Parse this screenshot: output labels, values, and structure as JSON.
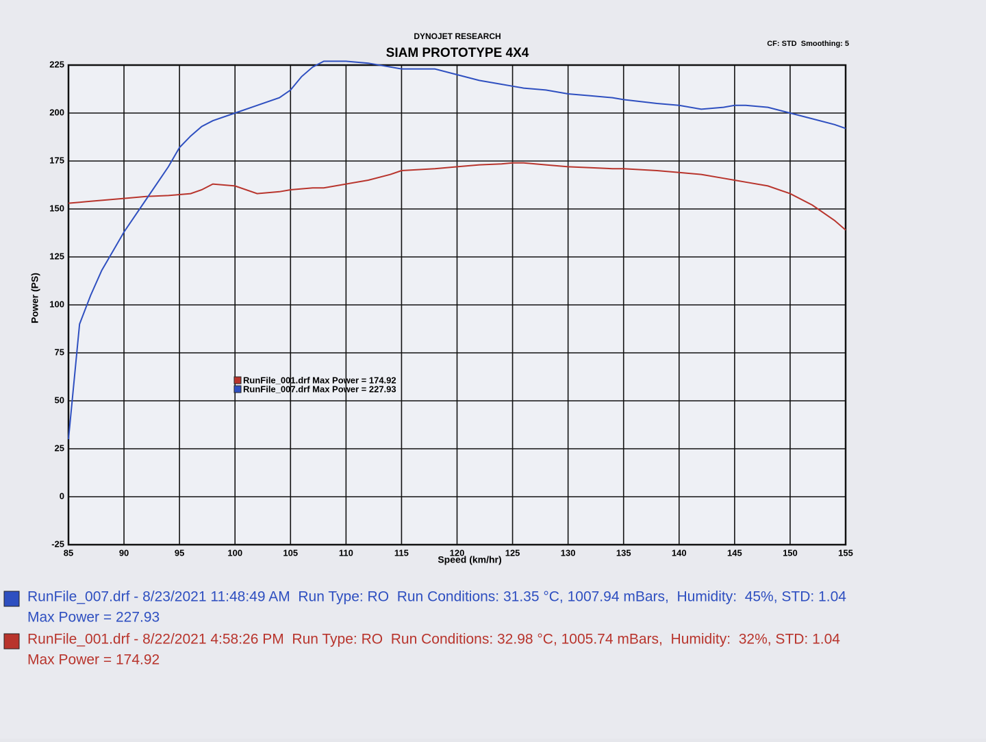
{
  "chart_data": {
    "type": "line",
    "subtitle": "DYNOJET RESEARCH",
    "title": "SIAM PROTOTYPE 4X4",
    "annotations": [
      "CF: STD  Smoothing: 5"
    ],
    "x_label": "Speed (km/hr)",
    "y_label": "Power (PS)",
    "xlim": [
      85,
      155
    ],
    "xticks": [
      85,
      90,
      95,
      100,
      105,
      110,
      115,
      120,
      125,
      130,
      135,
      140,
      145,
      150,
      155
    ],
    "ylim": [
      -25,
      225
    ],
    "yticks": [
      -25,
      0,
      25,
      50,
      75,
      100,
      125,
      150,
      175,
      200,
      225
    ],
    "grid": true,
    "x": [
      85,
      86,
      87,
      88,
      89,
      90,
      92,
      94,
      95,
      96,
      97,
      98,
      100,
      102,
      104,
      105,
      106,
      107,
      108,
      110,
      112,
      114,
      115,
      118,
      120,
      122,
      124,
      125,
      126,
      128,
      130,
      132,
      134,
      135,
      138,
      140,
      142,
      144,
      145,
      146,
      148,
      150,
      152,
      154,
      155
    ],
    "series": [
      {
        "name": "RunFile_001.drf Max Power = 174.92",
        "color": "#b8342c",
        "run_info": "RunFile_001.drf - 8/22/2021 4:58:26 PM  Run Type: RO  Run Conditions: 32.98 °C, 1005.74 mBars,  Humidity:  32%, STD: 1.04",
        "max_power": "Max Power = 174.92",
        "values": [
          153,
          153.5,
          154,
          154.5,
          155,
          155.5,
          156.5,
          157,
          157.5,
          158,
          160,
          163,
          162,
          158,
          159,
          160,
          160.5,
          161,
          161,
          163,
          165,
          168,
          170,
          171,
          172,
          173,
          173.5,
          174,
          174,
          173,
          172,
          171.5,
          171,
          171,
          170,
          169,
          168,
          166,
          165,
          164,
          162,
          158,
          152,
          144,
          139
        ]
      },
      {
        "name": "RunFile_007.drf Max Power = 227.93",
        "color": "#2e4fc0",
        "run_info": "RunFile_007.drf - 8/23/2021 11:48:49 AM  Run Type: RO  Run Conditions: 31.35 °C, 1007.94 mBars,  Humidity:  45%, STD: 1.04",
        "max_power": "Max Power = 227.93",
        "values": [
          30,
          90,
          105,
          118,
          128,
          138,
          155,
          172,
          182,
          188,
          193,
          196,
          200,
          204,
          208,
          212,
          219,
          224,
          227,
          227,
          226,
          224,
          223,
          223,
          220,
          217,
          215,
          214,
          213,
          212,
          210,
          209,
          208,
          207,
          205,
          204,
          202,
          203,
          204,
          204,
          203,
          200,
          197,
          194,
          192
        ]
      }
    ]
  }
}
